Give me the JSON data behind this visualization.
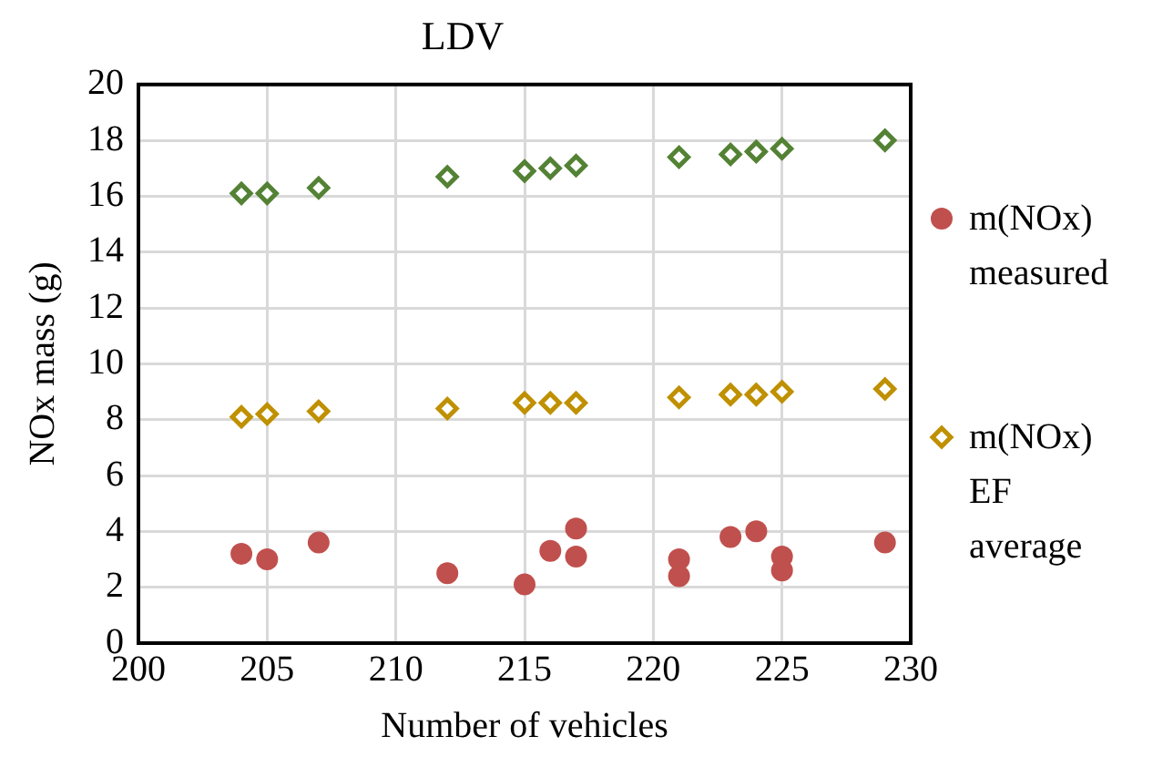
{
  "chart_data": {
    "type": "scatter",
    "title": "LDV",
    "xlabel": "Number of vehicles",
    "ylabel": "NOx mass (g)",
    "xlim": [
      200,
      230
    ],
    "xticks": [
      200,
      205,
      210,
      215,
      220,
      225,
      230
    ],
    "ylim": [
      0,
      20
    ],
    "yticks": [
      0,
      2,
      4,
      6,
      8,
      10,
      12,
      14,
      16,
      18,
      20
    ],
    "grid": true,
    "legend": "right",
    "series": [
      {
        "name": "m(NOx) measured",
        "color": "#c0504d",
        "marker": "circle",
        "x": [
          204,
          205,
          207,
          212,
          215,
          216,
          217,
          217,
          221,
          221,
          223,
          224,
          225,
          225,
          229
        ],
        "values": [
          3.2,
          3.0,
          3.6,
          2.5,
          2.1,
          3.3,
          4.1,
          3.1,
          3.0,
          2.4,
          3.8,
          4.0,
          3.1,
          2.6,
          3.6
        ]
      },
      {
        "name": "m(NOx) EF average",
        "color": "#bf9000",
        "marker": "diamond",
        "x": [
          204,
          205,
          207,
          212,
          215,
          216,
          217,
          221,
          223,
          224,
          225,
          229
        ],
        "values": [
          8.1,
          8.2,
          8.3,
          8.4,
          8.6,
          8.6,
          8.6,
          8.8,
          8.9,
          8.9,
          9.0,
          9.1
        ]
      },
      {
        "color": "#548235",
        "marker": "diamond",
        "x": [
          204,
          205,
          207,
          212,
          215,
          216,
          217,
          221,
          223,
          224,
          225,
          229
        ],
        "values": [
          16.1,
          16.1,
          16.3,
          16.7,
          16.9,
          17.0,
          17.1,
          17.4,
          17.5,
          17.6,
          17.7,
          18.0
        ]
      }
    ]
  }
}
